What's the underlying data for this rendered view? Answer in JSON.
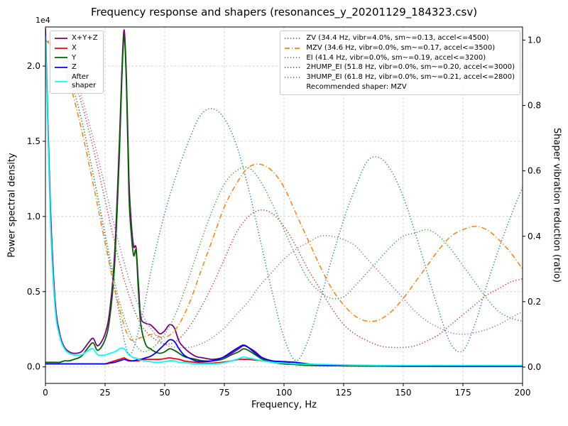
{
  "chart_data": {
    "type": "line",
    "title": "Frequency response and shapers (resonances_y_20201129_184323.csv)",
    "xlabel": "Frequency, Hz",
    "ylabel_left": "Power spectral density",
    "ylabel_right": "Shaper vibration reduction (ratio)",
    "y_left_offset_label": "1e4",
    "xlim": [
      0,
      200
    ],
    "ylim_left": [
      -0.11,
      2.26
    ],
    "ylim_right": [
      -0.05,
      1.04
    ],
    "grid": true,
    "x_ticks": [
      [
        0,
        "0"
      ],
      [
        25,
        "25"
      ],
      [
        50,
        "50"
      ],
      [
        75,
        "75"
      ],
      [
        100,
        "100"
      ],
      [
        125,
        "125"
      ],
      [
        150,
        "150"
      ],
      [
        175,
        "175"
      ],
      [
        200,
        "200"
      ]
    ],
    "y_left_ticks": [
      [
        0,
        "0.0"
      ],
      [
        0.5,
        "0.5"
      ],
      [
        1.0,
        "1.0"
      ],
      [
        1.5,
        "1.5"
      ],
      [
        2.0,
        "2.0"
      ]
    ],
    "y_right_ticks": [
      [
        0,
        "0.0"
      ],
      [
        0.2,
        "0.2"
      ],
      [
        0.4,
        "0.4"
      ],
      [
        0.6,
        "0.6"
      ],
      [
        0.8,
        "0.8"
      ],
      [
        1.0,
        "1.0"
      ]
    ],
    "psd_units_note": "left-axis values are in units of 1e4",
    "psd_x": [
      0,
      2,
      4,
      6,
      8,
      10,
      12,
      15,
      18,
      20,
      22,
      25,
      27,
      29,
      31,
      32,
      33,
      34,
      35,
      36,
      37,
      38,
      39,
      40,
      42,
      44,
      46,
      48,
      50,
      52,
      54,
      56,
      58,
      60,
      63,
      66,
      70,
      74,
      78,
      81,
      83,
      85,
      88,
      91,
      95,
      100,
      105,
      110,
      120,
      130,
      140,
      160,
      180,
      200
    ],
    "psd_series": [
      {
        "name": "X+Y+Z",
        "color": "#800080",
        "style": "solid",
        "y": [
          2.25,
          1.1,
          0.45,
          0.22,
          0.13,
          0.1,
          0.09,
          0.1,
          0.16,
          0.19,
          0.14,
          0.22,
          0.38,
          0.75,
          1.5,
          1.95,
          2.24,
          1.9,
          1.25,
          0.95,
          0.8,
          0.79,
          0.55,
          0.33,
          0.29,
          0.28,
          0.25,
          0.22,
          0.24,
          0.28,
          0.26,
          0.17,
          0.13,
          0.1,
          0.07,
          0.06,
          0.05,
          0.06,
          0.09,
          0.12,
          0.14,
          0.13,
          0.1,
          0.06,
          0.04,
          0.03,
          0.02,
          0.015,
          0.01,
          0.008,
          0.006,
          0.005,
          0.004,
          0.004
        ]
      },
      {
        "name": "X",
        "color": "#ff0000",
        "style": "solid",
        "y": [
          0.02,
          0.02,
          0.02,
          0.02,
          0.02,
          0.02,
          0.02,
          0.02,
          0.02,
          0.02,
          0.02,
          0.02,
          0.03,
          0.04,
          0.05,
          0.055,
          0.06,
          0.05,
          0.045,
          0.04,
          0.04,
          0.04,
          0.04,
          0.045,
          0.05,
          0.05,
          0.05,
          0.05,
          0.055,
          0.06,
          0.055,
          0.05,
          0.04,
          0.035,
          0.03,
          0.025,
          0.025,
          0.03,
          0.04,
          0.05,
          0.05,
          0.05,
          0.045,
          0.04,
          0.03,
          0.02,
          0.015,
          0.01,
          0.008,
          0.006,
          0.005,
          0.004,
          0.004,
          0.004
        ]
      },
      {
        "name": "Y",
        "color": "#006400",
        "style": "solid",
        "y": [
          0.03,
          0.03,
          0.03,
          0.03,
          0.04,
          0.04,
          0.05,
          0.07,
          0.13,
          0.16,
          0.11,
          0.18,
          0.33,
          0.68,
          1.42,
          1.9,
          2.2,
          1.85,
          1.15,
          0.88,
          0.74,
          0.77,
          0.5,
          0.28,
          0.15,
          0.12,
          0.1,
          0.09,
          0.1,
          0.12,
          0.11,
          0.09,
          0.07,
          0.06,
          0.05,
          0.04,
          0.04,
          0.05,
          0.08,
          0.1,
          0.12,
          0.11,
          0.08,
          0.05,
          0.03,
          0.02,
          0.015,
          0.01,
          0.008,
          0.006,
          0.005,
          0.004,
          0.004,
          0.004
        ]
      },
      {
        "name": "Z",
        "color": "#0000ff",
        "style": "solid",
        "y": [
          0.02,
          0.02,
          0.02,
          0.02,
          0.02,
          0.02,
          0.02,
          0.02,
          0.02,
          0.02,
          0.02,
          0.02,
          0.025,
          0.03,
          0.04,
          0.045,
          0.05,
          0.045,
          0.04,
          0.04,
          0.04,
          0.045,
          0.05,
          0.05,
          0.06,
          0.07,
          0.09,
          0.12,
          0.15,
          0.18,
          0.17,
          0.12,
          0.08,
          0.06,
          0.04,
          0.035,
          0.04,
          0.06,
          0.1,
          0.13,
          0.145,
          0.13,
          0.09,
          0.06,
          0.04,
          0.035,
          0.03,
          0.02,
          0.01,
          0.008,
          0.006,
          0.005,
          0.004,
          0.004
        ]
      },
      {
        "name": "After\nshaper",
        "color": "#00ffff",
        "style": "solid",
        "y": [
          2.2,
          1.0,
          0.4,
          0.2,
          0.12,
          0.09,
          0.08,
          0.08,
          0.11,
          0.12,
          0.08,
          0.08,
          0.09,
          0.1,
          0.12,
          0.125,
          0.12,
          0.1,
          0.08,
          0.07,
          0.06,
          0.06,
          0.05,
          0.045,
          0.04,
          0.035,
          0.03,
          0.03,
          0.035,
          0.04,
          0.04,
          0.03,
          0.03,
          0.025,
          0.02,
          0.02,
          0.02,
          0.025,
          0.04,
          0.055,
          0.065,
          0.06,
          0.05,
          0.04,
          0.03,
          0.025,
          0.02,
          0.018,
          0.015,
          0.012,
          0.01,
          0.01,
          0.01,
          0.01
        ]
      }
    ],
    "shaper_x": [
      0,
      5,
      10,
      15,
      20,
      25,
      30,
      35,
      40,
      45,
      50,
      55,
      60,
      65,
      70,
      75,
      80,
      85,
      90,
      95,
      100,
      105,
      110,
      115,
      120,
      125,
      130,
      135,
      140,
      145,
      150,
      155,
      160,
      165,
      170,
      175,
      180,
      185,
      190,
      195,
      200
    ],
    "shaper_series": [
      {
        "name": "ZV",
        "label": "ZV (34.4 Hz, vibr=4.0%, sm~=0.13, accel<=4500)",
        "color": "#1f77b4",
        "style": "dotted",
        "y": [
          1.0,
          0.97,
          0.89,
          0.76,
          0.59,
          0.4,
          0.2,
          0.04,
          0.14,
          0.32,
          0.47,
          0.59,
          0.69,
          0.77,
          0.79,
          0.76,
          0.68,
          0.55,
          0.39,
          0.23,
          0.09,
          0.02,
          0.08,
          0.2,
          0.33,
          0.45,
          0.55,
          0.63,
          0.64,
          0.6,
          0.52,
          0.41,
          0.29,
          0.17,
          0.07,
          0.05,
          0.13,
          0.25,
          0.36,
          0.46,
          0.55
        ]
      },
      {
        "name": "MZV",
        "label": "MZV (34.6 Hz, vibr=0.0%, sm~=0.17, accel<=3500)",
        "color": "#ff7f0e",
        "style": "dashdot",
        "y": [
          1.0,
          0.96,
          0.87,
          0.73,
          0.56,
          0.38,
          0.21,
          0.09,
          0.09,
          0.1,
          0.09,
          0.12,
          0.19,
          0.29,
          0.39,
          0.49,
          0.56,
          0.61,
          0.62,
          0.6,
          0.55,
          0.47,
          0.39,
          0.31,
          0.24,
          0.19,
          0.155,
          0.14,
          0.145,
          0.17,
          0.21,
          0.26,
          0.31,
          0.36,
          0.4,
          0.42,
          0.43,
          0.42,
          0.39,
          0.35,
          0.3
        ]
      },
      {
        "name": "EI",
        "label": "EI (41.4 Hz, vibr=0.0%, sm~=0.19, accel<=3200)",
        "color": "#2ca02c",
        "style": "dotted",
        "y": [
          1.0,
          0.97,
          0.89,
          0.76,
          0.59,
          0.41,
          0.23,
          0.11,
          0.05,
          0.06,
          0.1,
          0.17,
          0.27,
          0.38,
          0.48,
          0.56,
          0.6,
          0.61,
          0.57,
          0.5,
          0.42,
          0.34,
          0.27,
          0.23,
          0.21,
          0.215,
          0.25,
          0.29,
          0.33,
          0.37,
          0.4,
          0.41,
          0.42,
          0.4,
          0.36,
          0.31,
          0.26,
          0.21,
          0.17,
          0.15,
          0.14
        ]
      },
      {
        "name": "2HUMP_EI",
        "label": "2HUMP_EI (51.8 Hz, vibr=0.0%, sm~=0.20, accel<=3000)",
        "color": "#d62728",
        "style": "dotted",
        "y": [
          1.0,
          0.98,
          0.92,
          0.81,
          0.67,
          0.51,
          0.35,
          0.22,
          0.13,
          0.09,
          0.07,
          0.08,
          0.12,
          0.18,
          0.25,
          0.33,
          0.41,
          0.46,
          0.48,
          0.47,
          0.43,
          0.37,
          0.3,
          0.24,
          0.18,
          0.13,
          0.1,
          0.08,
          0.065,
          0.06,
          0.06,
          0.065,
          0.08,
          0.1,
          0.13,
          0.16,
          0.19,
          0.22,
          0.24,
          0.26,
          0.27
        ]
      },
      {
        "name": "3HUMP_EI",
        "label": "3HUMP_EI (61.8 Hz, vibr=0.0%, sm~=0.21, accel<=2800)",
        "color": "#9467bd",
        "style": "dotted",
        "y": [
          1.0,
          0.98,
          0.93,
          0.83,
          0.7,
          0.55,
          0.4,
          0.27,
          0.17,
          0.11,
          0.07,
          0.06,
          0.06,
          0.07,
          0.09,
          0.12,
          0.16,
          0.2,
          0.25,
          0.29,
          0.33,
          0.36,
          0.38,
          0.4,
          0.4,
          0.39,
          0.37,
          0.33,
          0.29,
          0.25,
          0.21,
          0.17,
          0.14,
          0.12,
          0.105,
          0.1,
          0.105,
          0.115,
          0.13,
          0.15,
          0.17
        ]
      }
    ],
    "legend_note": "Recommended shaper: MZV"
  }
}
